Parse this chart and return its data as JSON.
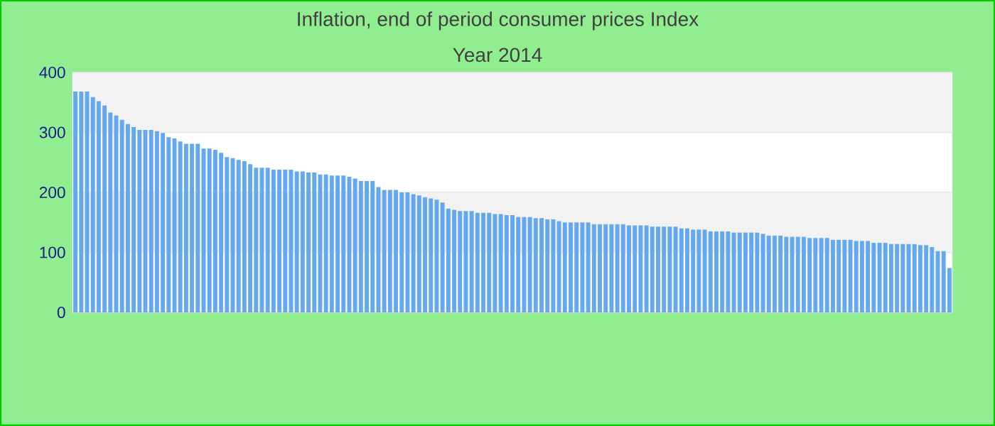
{
  "chart_data": {
    "type": "bar",
    "title": "Inflation, end of period consumer prices  Index",
    "subtitle": "Year 2014",
    "categories": [
      null,
      null,
      null,
      null,
      null,
      null,
      null,
      null,
      null,
      null,
      null,
      null,
      null,
      null,
      null,
      null,
      null,
      null,
      null,
      null,
      null,
      null,
      null,
      null,
      null,
      null,
      null,
      null,
      null,
      null,
      null,
      null,
      null,
      null,
      null,
      null,
      null,
      null,
      null,
      null,
      null,
      null,
      null,
      null,
      null,
      null,
      null,
      null,
      null,
      null,
      null,
      null,
      null,
      null,
      null,
      null,
      null,
      null,
      null,
      null,
      null,
      null,
      null,
      null,
      null,
      null,
      null,
      null,
      null,
      null,
      null,
      null,
      null,
      null,
      null,
      null,
      null,
      null,
      null,
      null,
      null,
      null,
      null,
      null,
      null,
      null,
      null,
      null,
      null,
      null,
      null,
      null,
      null,
      null,
      null,
      null,
      null,
      null,
      null,
      null,
      null,
      null,
      null,
      null,
      null,
      null,
      null,
      null,
      null,
      null,
      null,
      null,
      null,
      null,
      null,
      null,
      null,
      null,
      null,
      null,
      null,
      null,
      null,
      null,
      null,
      null,
      null,
      null,
      null,
      null,
      null,
      null,
      null,
      null,
      null,
      null,
      null,
      null,
      null,
      null,
      null,
      null,
      null,
      null,
      null,
      null,
      null,
      null,
      null,
      null,
      null
    ],
    "values": [
      368,
      368,
      368,
      359,
      352,
      345,
      333,
      328,
      321,
      314,
      309,
      304,
      304,
      304,
      302,
      299,
      292,
      290,
      285,
      281,
      281,
      281,
      273,
      273,
      271,
      266,
      259,
      257,
      254,
      252,
      247,
      241,
      241,
      241,
      238,
      238,
      238,
      238,
      235,
      235,
      233,
      233,
      230,
      230,
      228,
      228,
      228,
      226,
      223,
      219,
      219,
      219,
      209,
      204,
      204,
      204,
      200,
      200,
      197,
      195,
      192,
      190,
      188,
      183,
      173,
      171,
      169,
      169,
      169,
      166,
      166,
      166,
      164,
      164,
      162,
      162,
      159,
      159,
      159,
      157,
      157,
      155,
      155,
      152,
      150,
      150,
      150,
      150,
      150,
      147,
      147,
      147,
      147,
      147,
      147,
      145,
      145,
      145,
      145,
      143,
      143,
      143,
      143,
      143,
      140,
      140,
      138,
      138,
      138,
      135,
      135,
      135,
      135,
      133,
      133,
      133,
      133,
      133,
      131,
      128,
      128,
      128,
      126,
      126,
      126,
      126,
      124,
      124,
      124,
      124,
      121,
      121,
      121,
      121,
      119,
      119,
      119,
      116,
      116,
      116,
      114,
      114,
      114,
      114,
      114,
      112,
      112,
      109,
      102,
      102,
      74
    ],
    "color": "#64a8f0",
    "ylim": [
      0,
      400
    ],
    "yticks": [
      0,
      100,
      200,
      300,
      400
    ],
    "grid": "y"
  }
}
